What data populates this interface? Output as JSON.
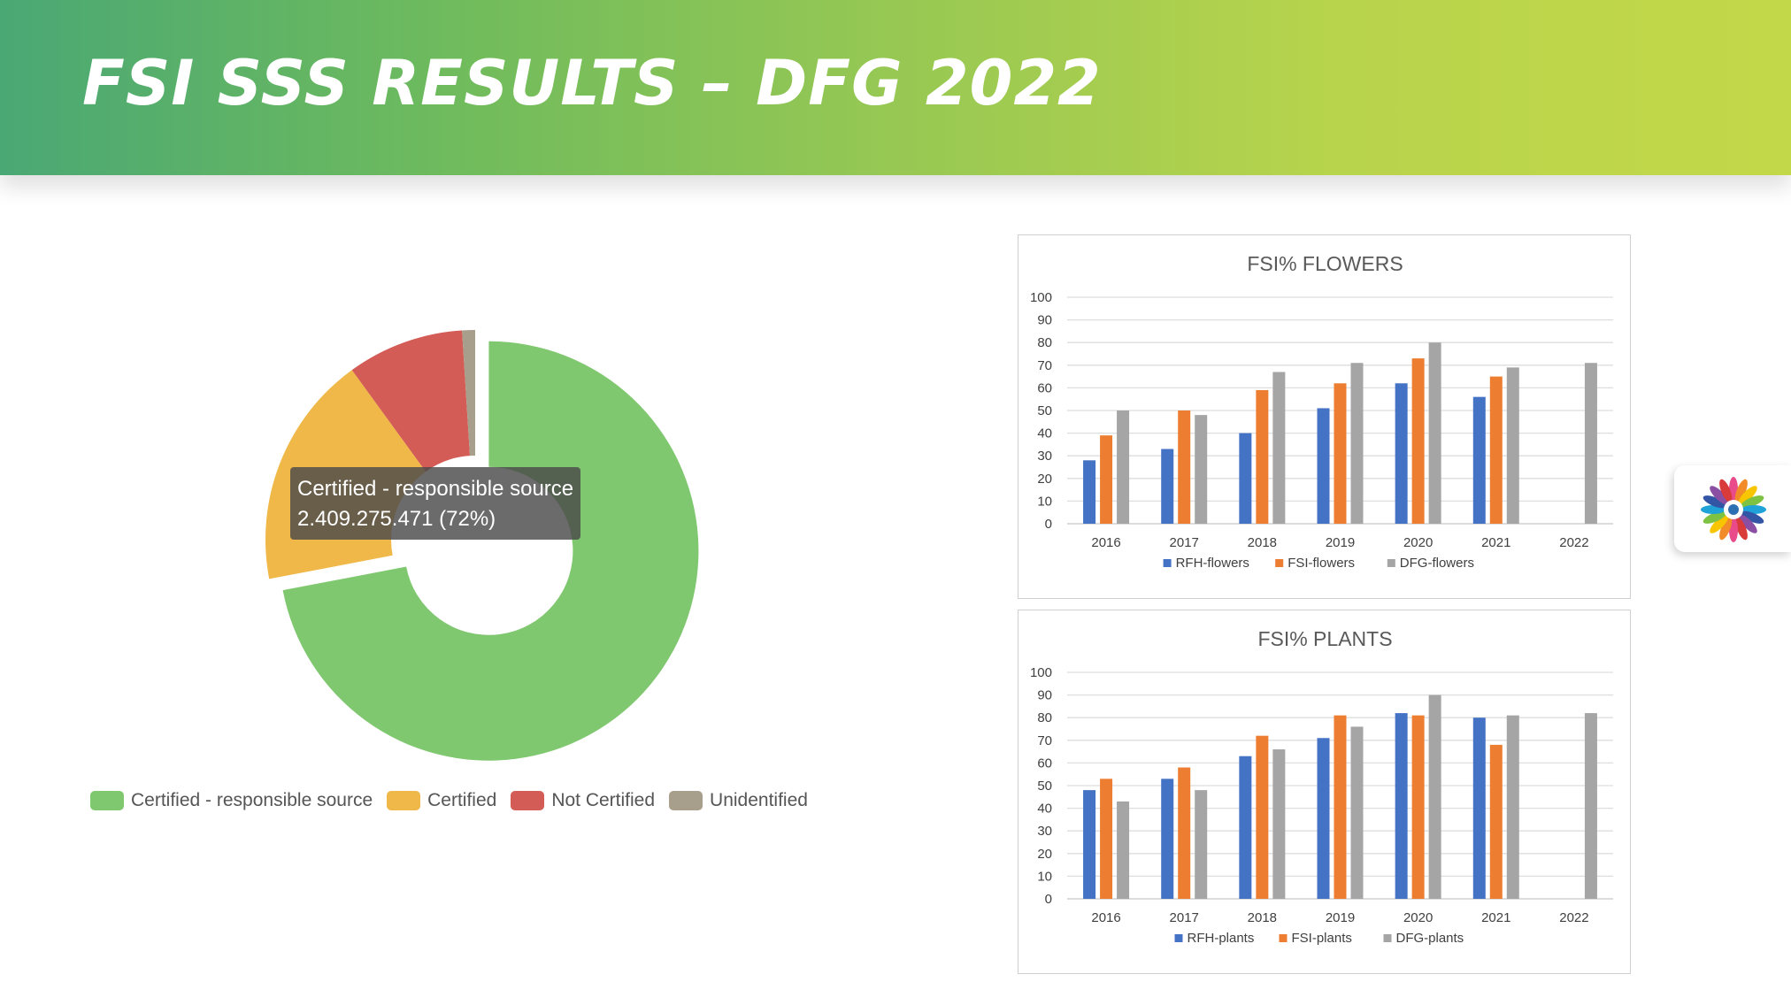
{
  "page": {
    "title": "FSI SSS RESULTS – DFG 2022"
  },
  "colors": {
    "banner_start": "#4aa874",
    "banner_end": "#c3d849"
  },
  "icons": {
    "logo": "flower-logo-icon"
  },
  "chart_data": [
    {
      "type": "pie",
      "donut": true,
      "title": "",
      "slices": [
        {
          "label": "Certified - responsible source",
          "value": 72,
          "color": "#80c870"
        },
        {
          "label": "Certified",
          "value": 18,
          "color": "#f0b848"
        },
        {
          "label": "Not Certified",
          "value": 9,
          "color": "#d35c56"
        },
        {
          "label": "Unidentified",
          "value": 1,
          "color": "#a89e8c"
        }
      ],
      "highlighted": 0,
      "tooltip": {
        "label": "Certified - responsible source",
        "value_text": "2.409.275.471 (72%)"
      },
      "legend_position": "bottom"
    },
    {
      "type": "bar",
      "title": "FSI% FLOWERS",
      "categories": [
        "2016",
        "2017",
        "2018",
        "2019",
        "2020",
        "2021",
        "2022"
      ],
      "series": [
        {
          "name": "RFH-flowers",
          "color": "#4472c4",
          "values": [
            28,
            33,
            40,
            51,
            62,
            56,
            null
          ]
        },
        {
          "name": "FSI-flowers",
          "color": "#ed7d31",
          "values": [
            39,
            50,
            59,
            62,
            73,
            65,
            null
          ]
        },
        {
          "name": "DFG-flowers",
          "color": "#a5a5a5",
          "values": [
            50,
            48,
            67,
            71,
            80,
            69,
            71
          ]
        }
      ],
      "ylim": [
        0,
        100
      ],
      "yticks": [
        0,
        10,
        20,
        30,
        40,
        50,
        60,
        70,
        80,
        90,
        100
      ],
      "grid": true,
      "legend_position": "bottom"
    },
    {
      "type": "bar",
      "title": "FSI% PLANTS",
      "categories": [
        "2016",
        "2017",
        "2018",
        "2019",
        "2020",
        "2021",
        "2022"
      ],
      "series": [
        {
          "name": "RFH-plants",
          "color": "#4472c4",
          "values": [
            48,
            53,
            63,
            71,
            82,
            80,
            null
          ]
        },
        {
          "name": "FSI-plants",
          "color": "#ed7d31",
          "values": [
            53,
            58,
            72,
            81,
            81,
            68,
            null
          ]
        },
        {
          "name": "DFG-plants",
          "color": "#a5a5a5",
          "values": [
            43,
            48,
            66,
            76,
            90,
            81,
            82
          ]
        }
      ],
      "ylim": [
        0,
        100
      ],
      "yticks": [
        0,
        10,
        20,
        30,
        40,
        50,
        60,
        70,
        80,
        90,
        100
      ],
      "grid": true,
      "legend_position": "bottom"
    }
  ]
}
